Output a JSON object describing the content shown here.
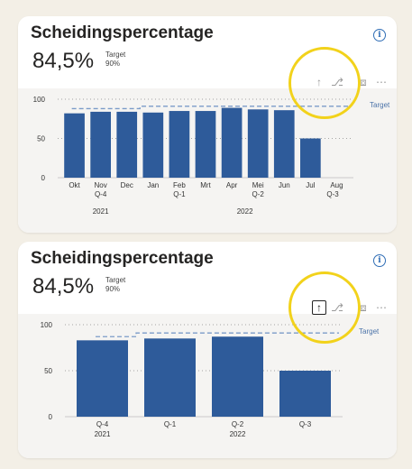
{
  "cards": [
    {
      "title": "Scheidingspercentage",
      "kpi_value": "84,5%",
      "target_label": "Target",
      "target_value": "90%",
      "info_icon": "info-icon",
      "toolbar": [
        "drill-up-icon",
        "drill-down-icon",
        "focus-mode-icon",
        "more-options-icon"
      ],
      "chart_data": {
        "type": "bar",
        "categories": [
          "Okt",
          "Nov",
          "Dec",
          "Jan",
          "Feb",
          "Mrt",
          "Apr",
          "Mei",
          "Jun",
          "Jul",
          "Aug"
        ],
        "values": [
          82,
          84,
          84,
          83,
          85,
          85,
          89,
          87,
          86,
          50,
          null
        ],
        "target_series_name": "Target",
        "target": [
          88,
          88,
          88,
          91,
          91,
          91,
          91,
          91,
          91,
          91,
          91
        ],
        "yticks": [
          0,
          50,
          100
        ],
        "ylim": [
          0,
          100
        ],
        "quarter_labels": [
          "Q-4",
          "Q-1",
          "Q-2",
          "Q-3"
        ],
        "year_labels": [
          "2021",
          "2022"
        ],
        "bar_color": "#2e5b9a",
        "target_color": "#7b9bc8",
        "grid": true
      }
    },
    {
      "title": "Scheidingspercentage",
      "kpi_value": "84,5%",
      "target_label": "Target",
      "target_value": "90%",
      "info_icon": "info-icon",
      "toolbar": [
        "drill-up-icon",
        "drill-down-icon",
        "focus-mode-icon",
        "more-options-icon"
      ],
      "chart_data": {
        "type": "bar",
        "categories": [
          "Q-4",
          "Q-1",
          "Q-2",
          "Q-3"
        ],
        "values": [
          83,
          85,
          87,
          50
        ],
        "target_series_name": "Target",
        "target": [
          87,
          91,
          91,
          91
        ],
        "yticks": [
          0,
          50,
          100
        ],
        "ylim": [
          0,
          100
        ],
        "year_labels": [
          "2021",
          "2022"
        ],
        "bar_color": "#2e5b9a",
        "target_color": "#7b9bc8",
        "grid": true
      }
    }
  ],
  "highlight_color": "#f2d21b"
}
